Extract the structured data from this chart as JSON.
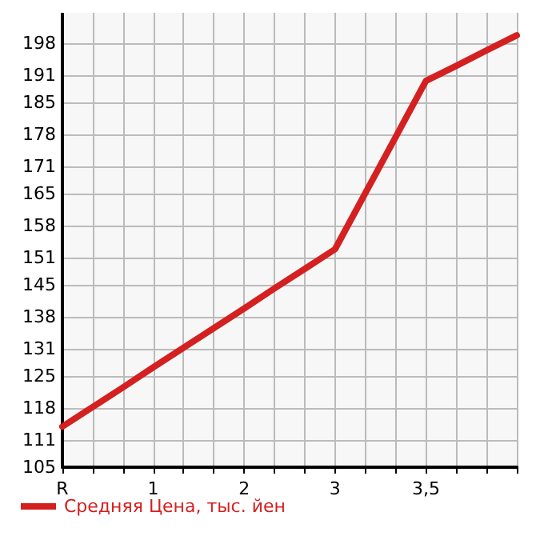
{
  "chart_data": {
    "type": "line",
    "categories": [
      "R",
      null,
      null,
      "1",
      null,
      null,
      "2",
      null,
      null,
      "3",
      null,
      null,
      "3,5",
      null,
      null,
      null
    ],
    "series": [
      {
        "name": "Средняя Цена, тыс. йен",
        "color": "#d42020",
        "values": [
          113.9,
          118.2,
          122.5,
          126.9,
          131.2,
          135.5,
          139.8,
          144.2,
          148.5,
          152.8,
          165.1,
          177.4,
          189.7,
          193.0,
          196.4,
          199.7
        ]
      }
    ],
    "ylim": [
      105,
      204.64
    ],
    "yticks": [
      105,
      111,
      118,
      125,
      131,
      138,
      145,
      151,
      158,
      165,
      171,
      178,
      185,
      191,
      198
    ],
    "grid": true,
    "legend": "bottom left",
    "marker": "none",
    "line_style": "solid"
  }
}
